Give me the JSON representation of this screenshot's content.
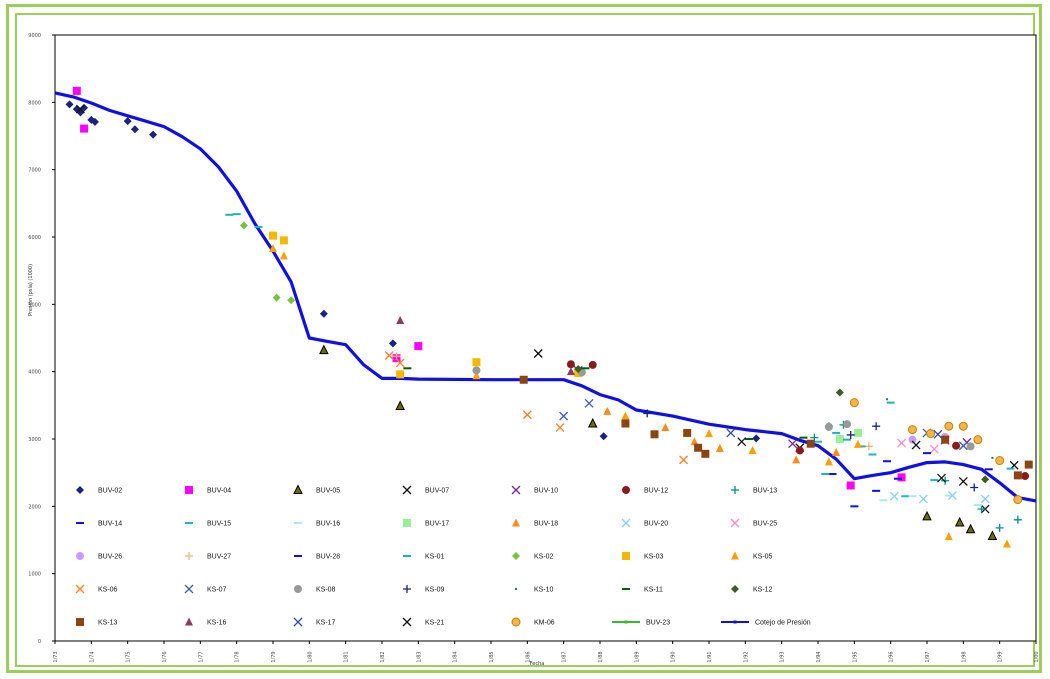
{
  "page": {
    "frame_color": "#9acd5a",
    "pressure_line_color": "#1010e0"
  },
  "chart_data": {
    "type": "scatter",
    "title": "",
    "ylabel": "Presión (psia) (1000)",
    "xlabel": "Fecha",
    "ylim": [
      0,
      9000
    ],
    "xlim": [
      0,
      27
    ],
    "grid": false,
    "yticks": [
      "9000",
      "8000",
      "7000",
      "6000",
      "5000",
      "4000",
      "3000",
      "2000",
      "1000",
      "0"
    ],
    "xticks": [
      "1/73",
      "1/74",
      "1/75",
      "1/76",
      "1/77",
      "1/78",
      "1/79",
      "1/80",
      "1/81",
      "1/82",
      "1/83",
      "1/84",
      "1/85",
      "1/86",
      "1/87",
      "1/88",
      "1/89",
      "1/90",
      "1/91",
      "1/92",
      "1/93",
      "1/94",
      "1/95",
      "1/96",
      "1/97",
      "1/98",
      "1/99",
      "1/00"
    ],
    "legend_position": "bottom",
    "series": [
      {
        "name": "BUV-02",
        "marker": "diamond",
        "color": "#1a237e",
        "points": [
          [
            0.4,
            7970
          ],
          [
            0.6,
            7900
          ],
          [
            0.7,
            7850
          ],
          [
            0.8,
            7920
          ],
          [
            1.0,
            7740
          ],
          [
            1.1,
            7710
          ],
          [
            2.0,
            7720
          ],
          [
            2.2,
            7600
          ],
          [
            2.7,
            7520
          ],
          [
            7.4,
            4860
          ],
          [
            9.3,
            4420
          ],
          [
            15.1,
            3040
          ],
          [
            19.3,
            3010
          ]
        ]
      },
      {
        "name": "BUV-04",
        "marker": "square",
        "color": "#ff00ff",
        "points": [
          [
            0.6,
            8170
          ],
          [
            0.8,
            7610
          ],
          [
            9.4,
            4200
          ],
          [
            10.0,
            4380
          ],
          [
            21.9,
            2310
          ],
          [
            23.3,
            2430
          ]
        ]
      },
      {
        "name": "BUV-05",
        "marker": "triangle",
        "color": "#6b6b00",
        "outline": "#000000",
        "points": [
          [
            7.4,
            4320
          ],
          [
            9.5,
            3490
          ],
          [
            14.8,
            3230
          ],
          [
            24.0,
            1850
          ],
          [
            24.9,
            1760
          ],
          [
            25.2,
            1660
          ],
          [
            25.8,
            1560
          ]
        ]
      },
      {
        "name": "BUV-07",
        "marker": "x",
        "color": "#111111",
        "points": [
          [
            0.7,
            7900
          ],
          [
            13.3,
            4270
          ],
          [
            20.5,
            2870
          ],
          [
            25.0,
            2370
          ],
          [
            25.6,
            1960
          ],
          [
            26.4,
            2610
          ]
        ]
      },
      {
        "name": "BUV-10",
        "marker": "x",
        "color": "#7b1fa2",
        "points": [
          [
            14.4,
            4020
          ],
          [
            20.3,
            2930
          ],
          [
            24.5,
            2980
          ],
          [
            25.1,
            2950
          ]
        ]
      },
      {
        "name": "BUV-12",
        "marker": "circle",
        "color": "#8b1a1a",
        "points": [
          [
            14.2,
            4110
          ],
          [
            14.8,
            4100
          ],
          [
            20.5,
            2830
          ],
          [
            24.8,
            2900
          ],
          [
            26.7,
            2450
          ]
        ]
      },
      {
        "name": "BUV-13",
        "marker": "plus",
        "color": "#008b8b",
        "points": [
          [
            20.9,
            3020
          ],
          [
            21.3,
            3190
          ],
          [
            21.7,
            3210
          ],
          [
            24.5,
            2380
          ],
          [
            25.5,
            1960
          ],
          [
            26.0,
            1680
          ],
          [
            26.5,
            1800
          ]
        ]
      },
      {
        "name": "BUV-14",
        "marker": "dash",
        "color": "#1010e0",
        "points": [
          [
            21.4,
            2480
          ],
          [
            22.0,
            2000
          ],
          [
            22.6,
            2230
          ],
          [
            23.2,
            2410
          ],
          [
            25.7,
            2550
          ]
        ]
      },
      {
        "name": "BUV-15",
        "marker": "dash",
        "color": "#1fb5c8",
        "points": [
          [
            5.0,
            6340
          ],
          [
            5.6,
            6150
          ],
          [
            21.0,
            2960
          ],
          [
            21.5,
            3090
          ],
          [
            22.5,
            2770
          ],
          [
            23.4,
            2150
          ],
          [
            24.2,
            2390
          ],
          [
            26.3,
            2560
          ]
        ]
      },
      {
        "name": "BUV-16",
        "marker": "dash",
        "color": "#aae8ee",
        "points": [
          [
            22.8,
            2090
          ],
          [
            23.6,
            2150
          ],
          [
            24.6,
            2160
          ],
          [
            25.4,
            2020
          ]
        ]
      },
      {
        "name": "BUV-17",
        "marker": "square",
        "color": "#99ee99",
        "points": [
          [
            21.6,
            3000
          ],
          [
            22.1,
            3090
          ]
        ]
      },
      {
        "name": "BUV-18",
        "marker": "triangle",
        "color": "#ff8c1a",
        "points": [
          [
            15.2,
            3410
          ],
          [
            16.8,
            3170
          ],
          [
            17.6,
            2960
          ],
          [
            18.3,
            2860
          ],
          [
            20.4,
            2690
          ],
          [
            21.5,
            2800
          ]
        ]
      },
      {
        "name": "BUV-20",
        "marker": "x",
        "color": "#87cefa",
        "points": [
          [
            23.1,
            2150
          ],
          [
            23.9,
            2110
          ],
          [
            24.7,
            2160
          ],
          [
            25.6,
            2110
          ]
        ]
      },
      {
        "name": "BUV-25",
        "marker": "x",
        "color": "#ff88cc",
        "points": [
          [
            23.3,
            2940
          ],
          [
            24.2,
            2850
          ]
        ]
      },
      {
        "name": "BUV-26",
        "marker": "circle",
        "color": "#cc99ff",
        "points": [
          [
            23.6,
            2990
          ],
          [
            24.5,
            3030
          ]
        ]
      },
      {
        "name": "BUV-27",
        "marker": "plus",
        "color": "#ffb07a",
        "points": [
          [
            9.4,
            4230
          ],
          [
            22.4,
            2890
          ]
        ]
      },
      {
        "name": "BUV-28",
        "marker": "dash",
        "color": "#1010e0",
        "points": [
          [
            22.9,
            2670
          ],
          [
            24.0,
            2790
          ]
        ]
      },
      {
        "name": "KS-01",
        "marker": "dash",
        "color": "#20b2aa",
        "points": [
          [
            4.8,
            6330
          ],
          [
            21.2,
            2480
          ],
          [
            21.8,
            2990
          ],
          [
            22.2,
            2890
          ],
          [
            23.0,
            3540
          ]
        ]
      },
      {
        "name": "KS-02",
        "marker": "diamond",
        "color": "#7ac142",
        "points": [
          [
            5.2,
            6170
          ],
          [
            6.1,
            5100
          ],
          [
            6.5,
            5060
          ]
        ]
      },
      {
        "name": "KS-03",
        "marker": "square",
        "color": "#f5b800",
        "points": [
          [
            6.0,
            6020
          ],
          [
            6.3,
            5950
          ],
          [
            9.5,
            3960
          ],
          [
            11.6,
            4140
          ],
          [
            14.4,
            3980
          ]
        ]
      },
      {
        "name": "KS-05",
        "marker": "triangle",
        "color": "#ff9f00",
        "points": [
          [
            6.0,
            5830
          ],
          [
            6.3,
            5720
          ],
          [
            11.6,
            3940
          ],
          [
            15.7,
            3340
          ],
          [
            18.0,
            3080
          ],
          [
            19.2,
            2830
          ],
          [
            21.3,
            2660
          ],
          [
            22.1,
            2920
          ],
          [
            24.6,
            1550
          ],
          [
            26.2,
            1440
          ]
        ]
      },
      {
        "name": "KS-06",
        "marker": "x",
        "color": "#ff7f27",
        "points": [
          [
            9.2,
            4240
          ],
          [
            9.5,
            4130
          ],
          [
            13.0,
            3360
          ],
          [
            13.9,
            3170
          ],
          [
            17.3,
            2690
          ]
        ]
      },
      {
        "name": "KS-07",
        "marker": "x",
        "color": "#3b5bbf",
        "points": [
          [
            14.0,
            3340
          ],
          [
            14.7,
            3530
          ],
          [
            24.0,
            3090
          ],
          [
            25.0,
            2900
          ]
        ]
      },
      {
        "name": "KS-08",
        "marker": "circle",
        "color": "#999999",
        "points": [
          [
            11.6,
            4020
          ],
          [
            14.5,
            3990
          ],
          [
            21.3,
            3180
          ],
          [
            21.8,
            3220
          ],
          [
            25.2,
            2890
          ]
        ]
      },
      {
        "name": "KS-09",
        "marker": "plus",
        "color": "#1a237e",
        "points": [
          [
            16.3,
            3380
          ],
          [
            21.9,
            3060
          ],
          [
            22.6,
            3190
          ],
          [
            25.3,
            2280
          ]
        ]
      },
      {
        "name": "KS-10",
        "marker": "dot",
        "color": "#008080",
        "points": [
          [
            22.9,
            3590
          ],
          [
            25.8,
            2720
          ]
        ]
      },
      {
        "name": "KS-11",
        "marker": "dash",
        "color": "#005c00",
        "points": [
          [
            9.7,
            4050
          ],
          [
            14.6,
            4050
          ],
          [
            19.1,
            3000
          ],
          [
            20.6,
            3020
          ]
        ]
      },
      {
        "name": "KS-12",
        "marker": "diamond",
        "color": "#3d5c1e",
        "points": [
          [
            14.4,
            4040
          ],
          [
            21.6,
            3690
          ],
          [
            25.6,
            2400
          ]
        ]
      },
      {
        "name": "KS-13",
        "marker": "square",
        "color": "#8b4513",
        "points": [
          [
            12.9,
            3880
          ],
          [
            15.7,
            3230
          ],
          [
            16.5,
            3070
          ],
          [
            17.4,
            3090
          ],
          [
            17.7,
            2870
          ],
          [
            17.9,
            2780
          ],
          [
            20.8,
            2930
          ],
          [
            24.5,
            2990
          ],
          [
            26.5,
            2460
          ],
          [
            26.8,
            2620
          ]
        ]
      },
      {
        "name": "KS-16",
        "marker": "triangle",
        "color": "#8b3a62",
        "points": [
          [
            9.5,
            4760
          ],
          [
            14.2,
            4000
          ]
        ]
      },
      {
        "name": "KS-17",
        "marker": "x",
        "color": "#2c46b3",
        "points": [
          [
            18.6,
            3090
          ],
          [
            24.3,
            3070
          ]
        ]
      },
      {
        "name": "KS-21",
        "marker": "x",
        "color": "#111111",
        "points": [
          [
            18.9,
            2960
          ],
          [
            23.7,
            2910
          ],
          [
            24.4,
            2420
          ]
        ]
      },
      {
        "name": "KM-06",
        "marker": "circle",
        "color": "#ffb347",
        "outline": "#b8860b",
        "points": [
          [
            22.0,
            3540
          ],
          [
            23.6,
            3140
          ],
          [
            24.1,
            3080
          ],
          [
            24.6,
            3190
          ],
          [
            25.0,
            3190
          ],
          [
            25.4,
            2990
          ],
          [
            26.0,
            2680
          ],
          [
            26.5,
            2100
          ]
        ]
      },
      {
        "name": "BUV-23",
        "marker": "line",
        "color": "#2ebf2e",
        "points": []
      },
      {
        "name": "Cotejo de Presión",
        "marker": "line",
        "color": "#1010e0",
        "x": [
          0,
          0.5,
          1,
          1.5,
          2,
          2.5,
          3,
          3.5,
          4,
          4.5,
          5,
          5.5,
          6,
          6.5,
          7,
          7.5,
          8,
          8.5,
          9,
          9.5,
          10,
          12,
          14,
          14.5,
          15,
          15.5,
          16,
          17,
          18,
          19,
          20,
          20.5,
          21,
          21.5,
          22,
          22.5,
          23,
          23.5,
          24,
          24.5,
          25,
          25.5,
          26,
          26.5,
          27
        ],
        "y": [
          8140,
          8080,
          7990,
          7880,
          7800,
          7720,
          7640,
          7490,
          7310,
          7040,
          6680,
          6200,
          5790,
          5330,
          4500,
          4450,
          4400,
          4100,
          3900,
          3900,
          3890,
          3880,
          3880,
          3790,
          3660,
          3580,
          3430,
          3340,
          3220,
          3140,
          3080,
          2980,
          2900,
          2700,
          2410,
          2460,
          2500,
          2580,
          2650,
          2660,
          2620,
          2550,
          2350,
          2130,
          2080
        ]
      }
    ]
  }
}
